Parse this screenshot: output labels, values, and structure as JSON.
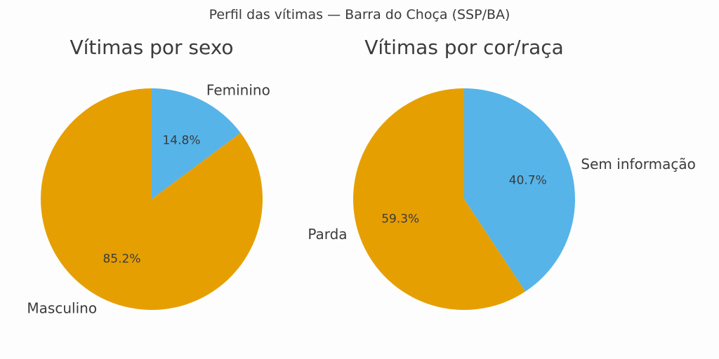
{
  "figure": {
    "suptitle": "Perfil das vítimas — Barra do Choça (SSP/BA)"
  },
  "chart_data": [
    {
      "type": "pie",
      "title": "Vítimas por sexo",
      "start_angle_deg": 90,
      "direction": "clockwise",
      "slices": [
        {
          "label": "Feminino",
          "value": 14.8,
          "pct_label": "14.8%",
          "color": "#56b4e9"
        },
        {
          "label": "Masculino",
          "value": 85.2,
          "pct_label": "85.2%",
          "color": "#e69f00"
        }
      ]
    },
    {
      "type": "pie",
      "title": "Vítimas por cor/raça",
      "start_angle_deg": 90,
      "direction": "clockwise",
      "slices": [
        {
          "label": "Sem informação",
          "value": 40.7,
          "pct_label": "40.7%",
          "color": "#56b4e9"
        },
        {
          "label": "Parda",
          "value": 59.3,
          "pct_label": "59.3%",
          "color": "#e69f00"
        }
      ]
    }
  ]
}
